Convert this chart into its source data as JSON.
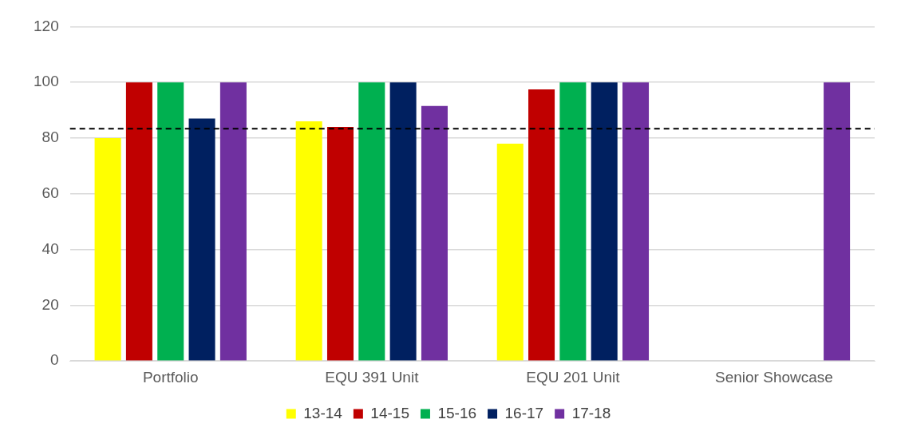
{
  "chart_data": {
    "type": "bar",
    "categories": [
      "Portfolio",
      "EQU 391 Unit",
      "EQU 201 Unit",
      "Senior Showcase"
    ],
    "series": [
      {
        "name": "13-14",
        "color": "#ffff00",
        "values": [
          80,
          86,
          78,
          null
        ]
      },
      {
        "name": "14-15",
        "color": "#c00000",
        "values": [
          100,
          84,
          97.5,
          null
        ]
      },
      {
        "name": "15-16",
        "color": "#00b050",
        "values": [
          100,
          100,
          100,
          null
        ]
      },
      {
        "name": "16-17",
        "color": "#002060",
        "values": [
          87,
          100,
          100,
          null
        ]
      },
      {
        "name": "17-18",
        "color": "#7030a0",
        "values": [
          100,
          91.5,
          100,
          100
        ]
      }
    ],
    "ylim": [
      0,
      120
    ],
    "yticks": [
      0,
      20,
      40,
      60,
      80,
      100,
      120
    ],
    "grid": "y",
    "legend": "bottom",
    "ref_lines": [
      {
        "axis": "y",
        "value": 83.4,
        "color": "#000000",
        "line_style": "dashed"
      }
    ]
  }
}
